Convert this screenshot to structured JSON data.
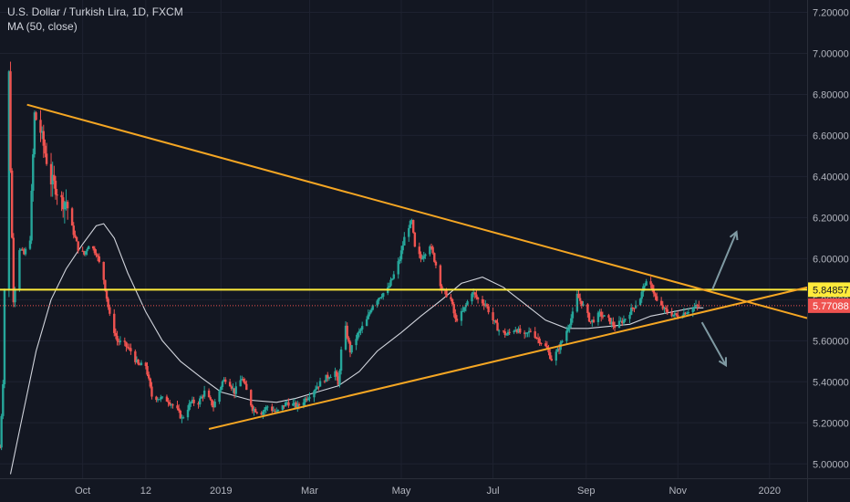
{
  "header": {
    "symbol_title": "U.S. Dollar / Turkish Lira, 1D, FXCM",
    "indicator": "MA (50, close)"
  },
  "colors": {
    "background": "#131722",
    "grid": "#1e2230",
    "axis_text": "#b2b5be",
    "candle_up": "#26a69a",
    "candle_down": "#ef5350",
    "ma_line": "#d1d4dc",
    "trendline": "#f5a623",
    "horizontal_line": "#ffeb3b",
    "arrow": "#7f9aa3",
    "price_tag_yellow": "#ffeb3b",
    "price_tag_red": "#ef5350"
  },
  "chart_data": {
    "type": "candlestick",
    "x_ticks": [
      {
        "label": "Oct",
        "date": "2018-10-01"
      },
      {
        "label": "12",
        "date": "2018-11-12"
      },
      {
        "label": "2019",
        "date": "2019-01-01"
      },
      {
        "label": "Mar",
        "date": "2019-03-01"
      },
      {
        "label": "May",
        "date": "2019-05-01"
      },
      {
        "label": "Jul",
        "date": "2019-07-01"
      },
      {
        "label": "Sep",
        "date": "2019-09-01"
      },
      {
        "label": "Nov",
        "date": "2019-11-01"
      },
      {
        "label": "2020",
        "date": "2020-01-01"
      }
    ],
    "y_ticks": [
      "7.20000",
      "7.00000",
      "6.80000",
      "6.60000",
      "6.40000",
      "6.20000",
      "6.00000",
      "5.80000",
      "5.60000",
      "5.40000",
      "5.20000",
      "5.00000"
    ],
    "ylim": [
      4.93,
      7.26
    ],
    "xlim": [
      "2018-08-07",
      "2020-01-26"
    ],
    "price_labels": [
      {
        "value": "5.84857",
        "style": "yellow"
      },
      {
        "value": "5.77088",
        "style": "red"
      }
    ],
    "horizontal_lines": [
      {
        "y": 5.84857,
        "style": "solid"
      },
      {
        "y": 5.77088,
        "style": "dotted"
      }
    ],
    "trendlines": [
      {
        "name": "resistance",
        "points": [
          [
            "2018-08-25",
            6.75
          ],
          [
            "2020-01-26",
            5.71
          ]
        ]
      },
      {
        "name": "support",
        "points": [
          [
            "2018-12-24",
            5.17
          ],
          [
            "2020-01-26",
            5.86
          ]
        ]
      }
    ],
    "arrows": [
      {
        "direction": "up",
        "from": [
          "2019-11-24",
          5.85
        ],
        "to": [
          "2019-12-10",
          6.13
        ]
      },
      {
        "direction": "down",
        "from": [
          "2019-11-17",
          5.69
        ],
        "to": [
          "2019-12-03",
          5.48
        ]
      }
    ],
    "close_path": [
      [
        "2018-08-07",
        5.08
      ],
      [
        "2018-08-09",
        5.4
      ],
      [
        "2018-08-10",
        5.85
      ],
      [
        "2018-08-13",
        6.9
      ],
      [
        "2018-08-14",
        6.45
      ],
      [
        "2018-08-15",
        6.1
      ],
      [
        "2018-08-16",
        5.8
      ],
      [
        "2018-08-20",
        6.05
      ],
      [
        "2018-08-23",
        6.02
      ],
      [
        "2018-08-27",
        6.1
      ],
      [
        "2018-08-30",
        6.7
      ],
      [
        "2018-09-03",
        6.62
      ],
      [
        "2018-09-05",
        6.55
      ],
      [
        "2018-09-10",
        6.38
      ],
      [
        "2018-09-13",
        6.35
      ],
      [
        "2018-09-17",
        6.28
      ],
      [
        "2018-09-20",
        6.28
      ],
      [
        "2018-09-24",
        6.15
      ],
      [
        "2018-09-28",
        6.05
      ],
      [
        "2018-10-02",
        6.02
      ],
      [
        "2018-10-05",
        6.07
      ],
      [
        "2018-10-10",
        6.03
      ],
      [
        "2018-10-15",
        5.9
      ],
      [
        "2018-10-19",
        5.72
      ],
      [
        "2018-10-24",
        5.6
      ],
      [
        "2018-10-29",
        5.58
      ],
      [
        "2018-11-02",
        5.55
      ],
      [
        "2018-11-07",
        5.48
      ],
      [
        "2018-11-12",
        5.48
      ],
      [
        "2018-11-16",
        5.33
      ],
      [
        "2018-11-21",
        5.32
      ],
      [
        "2018-11-27",
        5.31
      ],
      [
        "2018-12-03",
        5.26
      ],
      [
        "2018-12-06",
        5.22
      ],
      [
        "2018-12-12",
        5.3
      ],
      [
        "2018-12-17",
        5.3
      ],
      [
        "2018-12-21",
        5.35
      ],
      [
        "2018-12-27",
        5.28
      ],
      [
        "2019-01-02",
        5.4
      ],
      [
        "2019-01-05",
        5.42
      ],
      [
        "2019-01-10",
        5.35
      ],
      [
        "2019-01-15",
        5.42
      ],
      [
        "2019-01-22",
        5.27
      ],
      [
        "2019-01-28",
        5.25
      ],
      [
        "2019-02-01",
        5.28
      ],
      [
        "2019-02-07",
        5.25
      ],
      [
        "2019-02-14",
        5.3
      ],
      [
        "2019-02-21",
        5.28
      ],
      [
        "2019-02-28",
        5.33
      ],
      [
        "2019-03-06",
        5.38
      ],
      [
        "2019-03-12",
        5.42
      ],
      [
        "2019-03-18",
        5.45
      ],
      [
        "2019-03-20",
        5.38
      ],
      [
        "2019-03-22",
        5.55
      ],
      [
        "2019-03-25",
        5.66
      ],
      [
        "2019-03-28",
        5.55
      ],
      [
        "2019-04-02",
        5.63
      ],
      [
        "2019-04-08",
        5.7
      ],
      [
        "2019-04-12",
        5.78
      ],
      [
        "2019-04-17",
        5.82
      ],
      [
        "2019-04-22",
        5.85
      ],
      [
        "2019-04-26",
        5.92
      ],
      [
        "2019-04-30",
        6.0
      ],
      [
        "2019-05-03",
        6.1
      ],
      [
        "2019-05-06",
        6.16
      ],
      [
        "2019-05-08",
        6.18
      ],
      [
        "2019-05-10",
        6.05
      ],
      [
        "2019-05-14",
        6.0
      ],
      [
        "2019-05-20",
        6.07
      ],
      [
        "2019-05-24",
        5.97
      ],
      [
        "2019-05-28",
        5.85
      ],
      [
        "2019-06-03",
        5.8
      ],
      [
        "2019-06-06",
        5.7
      ],
      [
        "2019-06-11",
        5.74
      ],
      [
        "2019-06-17",
        5.84
      ],
      [
        "2019-06-21",
        5.8
      ],
      [
        "2019-06-26",
        5.78
      ],
      [
        "2019-07-01",
        5.7
      ],
      [
        "2019-07-05",
        5.65
      ],
      [
        "2019-07-10",
        5.63
      ],
      [
        "2019-07-16",
        5.66
      ],
      [
        "2019-07-22",
        5.62
      ],
      [
        "2019-07-26",
        5.65
      ],
      [
        "2019-07-31",
        5.61
      ],
      [
        "2019-08-05",
        5.57
      ],
      [
        "2019-08-09",
        5.51
      ],
      [
        "2019-08-13",
        5.55
      ],
      [
        "2019-08-19",
        5.65
      ],
      [
        "2019-08-23",
        5.73
      ],
      [
        "2019-08-26",
        5.82
      ],
      [
        "2019-08-30",
        5.77
      ],
      [
        "2019-09-04",
        5.69
      ],
      [
        "2019-09-10",
        5.73
      ],
      [
        "2019-09-16",
        5.7
      ],
      [
        "2019-09-20",
        5.67
      ],
      [
        "2019-09-26",
        5.7
      ],
      [
        "2019-10-02",
        5.76
      ],
      [
        "2019-10-07",
        5.81
      ],
      [
        "2019-10-10",
        5.88
      ],
      [
        "2019-10-15",
        5.86
      ],
      [
        "2019-10-18",
        5.79
      ],
      [
        "2019-10-23",
        5.75
      ],
      [
        "2019-10-28",
        5.73
      ],
      [
        "2019-11-01",
        5.72
      ],
      [
        "2019-11-06",
        5.74
      ],
      [
        "2019-11-11",
        5.76
      ],
      [
        "2019-11-15",
        5.77
      ]
    ],
    "ma_path": [
      [
        "2018-08-14",
        4.95
      ],
      [
        "2018-08-21",
        5.2
      ],
      [
        "2018-08-31",
        5.55
      ],
      [
        "2018-09-10",
        5.8
      ],
      [
        "2018-09-20",
        5.95
      ],
      [
        "2018-10-01",
        6.07
      ],
      [
        "2018-10-10",
        6.16
      ],
      [
        "2018-10-15",
        6.17
      ],
      [
        "2018-10-22",
        6.1
      ],
      [
        "2018-10-31",
        5.93
      ],
      [
        "2018-11-12",
        5.74
      ],
      [
        "2018-11-23",
        5.6
      ],
      [
        "2018-12-05",
        5.5
      ],
      [
        "2018-12-19",
        5.42
      ],
      [
        "2019-01-01",
        5.35
      ],
      [
        "2019-01-21",
        5.31
      ],
      [
        "2019-02-07",
        5.3
      ],
      [
        "2019-02-20",
        5.32
      ],
      [
        "2019-03-06",
        5.35
      ],
      [
        "2019-03-20",
        5.38
      ],
      [
        "2019-04-03",
        5.45
      ],
      [
        "2019-04-15",
        5.55
      ],
      [
        "2019-05-01",
        5.64
      ],
      [
        "2019-05-14",
        5.72
      ],
      [
        "2019-05-28",
        5.8
      ],
      [
        "2019-06-10",
        5.88
      ],
      [
        "2019-06-24",
        5.91
      ],
      [
        "2019-07-08",
        5.86
      ],
      [
        "2019-07-22",
        5.78
      ],
      [
        "2019-08-05",
        5.7
      ],
      [
        "2019-08-19",
        5.66
      ],
      [
        "2019-09-02",
        5.66
      ],
      [
        "2019-09-16",
        5.67
      ],
      [
        "2019-09-30",
        5.68
      ],
      [
        "2019-10-14",
        5.72
      ],
      [
        "2019-10-28",
        5.74
      ],
      [
        "2019-11-11",
        5.76
      ],
      [
        "2019-11-18",
        5.76
      ]
    ]
  }
}
